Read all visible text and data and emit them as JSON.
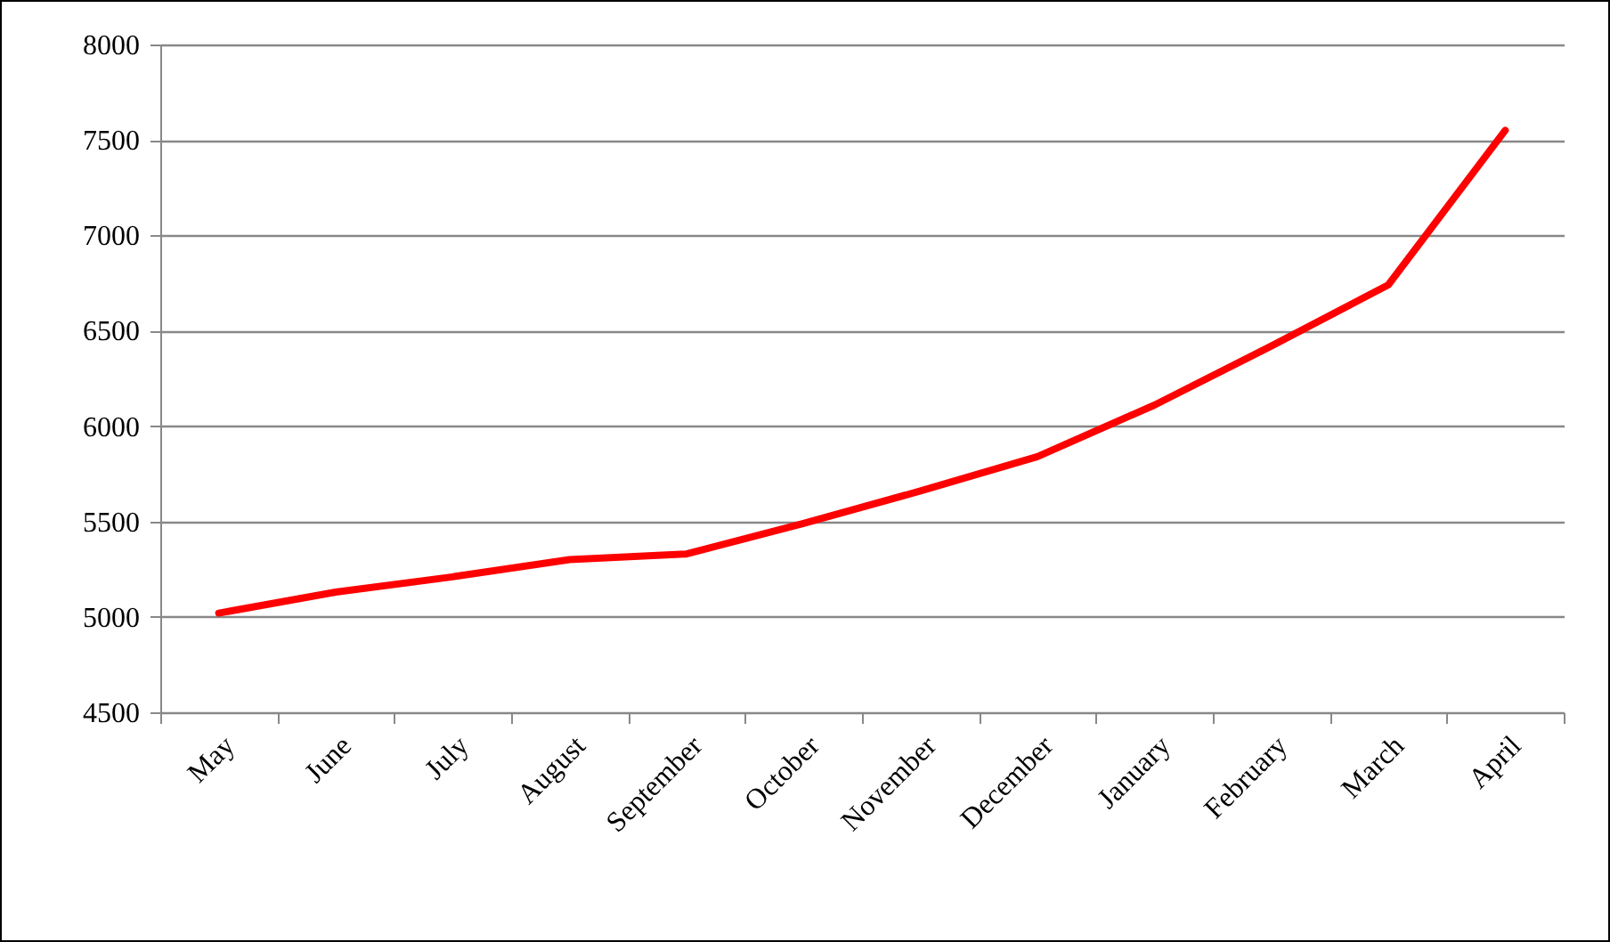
{
  "chart_data": {
    "type": "line",
    "categories": [
      "May",
      "June",
      "July",
      "August",
      "September",
      "October",
      "November",
      "December",
      "January",
      "February",
      "March",
      "April"
    ],
    "series": [
      {
        "color": "#ff0000",
        "values": [
          5020,
          5130,
          5210,
          5300,
          5330,
          5490,
          5660,
          5840,
          6110,
          6420,
          6740,
          7550
        ]
      }
    ],
    "ylim": [
      4500,
      8000
    ],
    "yticks": [
      4500,
      5000,
      5500,
      6000,
      6500,
      7000,
      7500,
      8000
    ],
    "grid": "y"
  }
}
